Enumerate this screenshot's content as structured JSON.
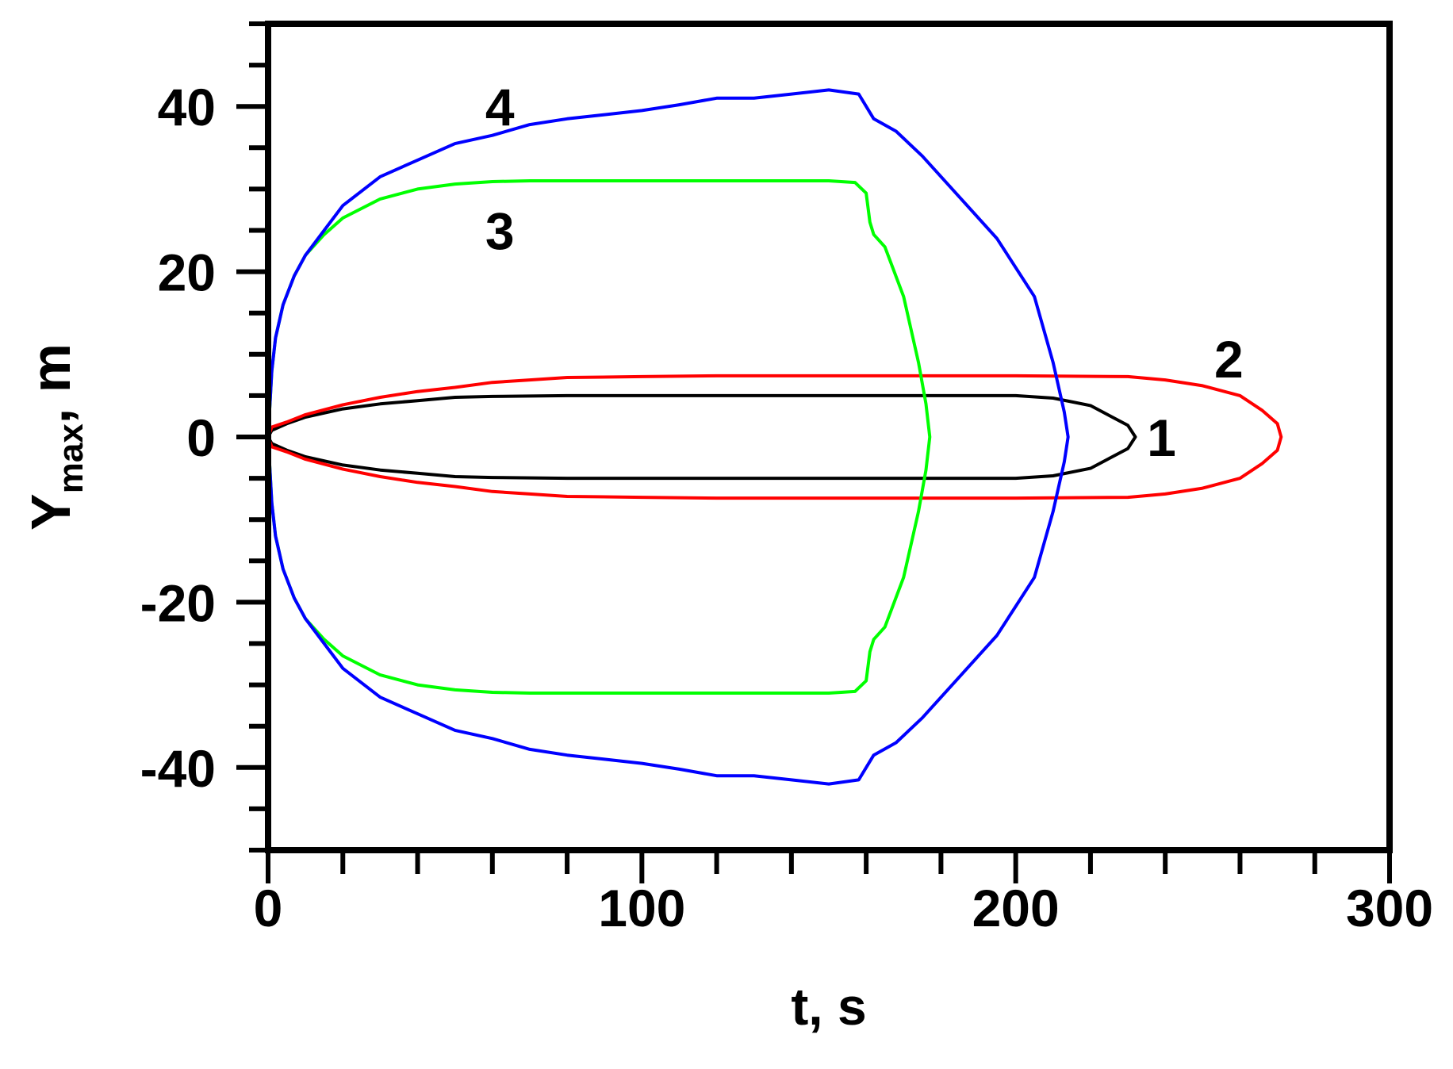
{
  "chart_data": {
    "type": "line",
    "title": "",
    "xlabel": "t, s",
    "ylabel": {
      "main": "Y",
      "sub": "max",
      "suffix": ", m"
    },
    "xlim": [
      0,
      300
    ],
    "ylim": [
      -50,
      50
    ],
    "x_ticks": [
      0,
      100,
      200,
      300
    ],
    "y_ticks": [
      -40,
      -20,
      0,
      20,
      40
    ],
    "x_tick_labels": [
      "0",
      "100",
      "200",
      "300"
    ],
    "y_tick_labels": [
      "-40",
      "-20",
      "0",
      "20",
      "40"
    ],
    "grid": false,
    "legend": "none",
    "series": [
      {
        "label": "1",
        "color": "#000000",
        "label_pos": [
          239,
          0
        ],
        "points": [
          [
            0,
            0
          ],
          [
            1,
            0.8
          ],
          [
            5,
            1.6
          ],
          [
            10,
            2.4
          ],
          [
            20,
            3.4
          ],
          [
            30,
            4.0
          ],
          [
            40,
            4.4
          ],
          [
            50,
            4.8
          ],
          [
            60,
            4.9
          ],
          [
            80,
            5.0
          ],
          [
            100,
            5.0
          ],
          [
            150,
            5.0
          ],
          [
            200,
            5.0
          ],
          [
            210,
            4.7
          ],
          [
            220,
            3.8
          ],
          [
            230,
            1.4
          ],
          [
            232,
            0
          ],
          [
            230,
            -1.4
          ],
          [
            220,
            -3.8
          ],
          [
            210,
            -4.7
          ],
          [
            200,
            -5.0
          ],
          [
            150,
            -5.0
          ],
          [
            100,
            -5.0
          ],
          [
            80,
            -5.0
          ],
          [
            60,
            -4.9
          ],
          [
            50,
            -4.8
          ],
          [
            40,
            -4.4
          ],
          [
            30,
            -4.0
          ],
          [
            20,
            -3.4
          ],
          [
            10,
            -2.4
          ],
          [
            5,
            -1.6
          ],
          [
            1,
            -0.8
          ],
          [
            0,
            0
          ]
        ]
      },
      {
        "label": "2",
        "color": "#ff0000",
        "label_pos": [
          257,
          9.5
        ],
        "points": [
          [
            0,
            0
          ],
          [
            1,
            1.2
          ],
          [
            5,
            1.8
          ],
          [
            10,
            2.7
          ],
          [
            20,
            3.9
          ],
          [
            30,
            4.8
          ],
          [
            40,
            5.5
          ],
          [
            50,
            6.0
          ],
          [
            60,
            6.6
          ],
          [
            70,
            6.9
          ],
          [
            80,
            7.2
          ],
          [
            100,
            7.3
          ],
          [
            120,
            7.4
          ],
          [
            150,
            7.4
          ],
          [
            200,
            7.4
          ],
          [
            230,
            7.3
          ],
          [
            240,
            6.9
          ],
          [
            250,
            6.2
          ],
          [
            260,
            5.0
          ],
          [
            266,
            3.2
          ],
          [
            270,
            1.6
          ],
          [
            271,
            0
          ],
          [
            270,
            -1.6
          ],
          [
            266,
            -3.2
          ],
          [
            260,
            -5.0
          ],
          [
            250,
            -6.2
          ],
          [
            240,
            -6.9
          ],
          [
            230,
            -7.3
          ],
          [
            200,
            -7.4
          ],
          [
            150,
            -7.4
          ],
          [
            120,
            -7.4
          ],
          [
            100,
            -7.3
          ],
          [
            80,
            -7.2
          ],
          [
            70,
            -6.9
          ],
          [
            60,
            -6.6
          ],
          [
            50,
            -6.0
          ],
          [
            40,
            -5.5
          ],
          [
            30,
            -4.8
          ],
          [
            20,
            -3.9
          ],
          [
            10,
            -2.7
          ],
          [
            5,
            -1.8
          ],
          [
            1,
            -1.2
          ],
          [
            0,
            0
          ]
        ]
      },
      {
        "label": "3",
        "color": "#00ff00",
        "label_pos": [
          62,
          25
        ],
        "points": [
          [
            0,
            0
          ],
          [
            1,
            8
          ],
          [
            2,
            12
          ],
          [
            4,
            16
          ],
          [
            7,
            19.5
          ],
          [
            10,
            22
          ],
          [
            15,
            24.5
          ],
          [
            20,
            26.5
          ],
          [
            30,
            28.8
          ],
          [
            40,
            30.0
          ],
          [
            50,
            30.6
          ],
          [
            60,
            30.9
          ],
          [
            70,
            31
          ],
          [
            100,
            31
          ],
          [
            130,
            31
          ],
          [
            150,
            31
          ],
          [
            157,
            30.8
          ],
          [
            160,
            29.5
          ],
          [
            161,
            26
          ],
          [
            162,
            24.5
          ],
          [
            165,
            23
          ],
          [
            170,
            17
          ],
          [
            174,
            9
          ],
          [
            176,
            4
          ],
          [
            177,
            0
          ],
          [
            176,
            -4
          ],
          [
            174,
            -9
          ],
          [
            170,
            -17
          ],
          [
            165,
            -23
          ],
          [
            162,
            -24.5
          ],
          [
            161,
            -26
          ],
          [
            160,
            -29.5
          ],
          [
            157,
            -30.8
          ],
          [
            150,
            -31
          ],
          [
            130,
            -31
          ],
          [
            100,
            -31
          ],
          [
            70,
            -31
          ],
          [
            60,
            -30.9
          ],
          [
            50,
            -30.6
          ],
          [
            40,
            -30.0
          ],
          [
            30,
            -28.8
          ],
          [
            20,
            -26.5
          ],
          [
            15,
            -24.5
          ],
          [
            10,
            -22
          ],
          [
            7,
            -19.5
          ],
          [
            4,
            -16
          ],
          [
            2,
            -12
          ],
          [
            1,
            -8
          ],
          [
            0,
            0
          ]
        ]
      },
      {
        "label": "4",
        "color": "#0000ff",
        "label_pos": [
          62,
          40
        ],
        "points": [
          [
            0,
            0
          ],
          [
            1,
            8
          ],
          [
            2,
            12
          ],
          [
            4,
            16
          ],
          [
            7,
            19.5
          ],
          [
            10,
            22
          ],
          [
            15,
            25
          ],
          [
            20,
            28
          ],
          [
            30,
            31.5
          ],
          [
            40,
            33.5
          ],
          [
            50,
            35.5
          ],
          [
            60,
            36.5
          ],
          [
            70,
            37.8
          ],
          [
            80,
            38.5
          ],
          [
            90,
            39
          ],
          [
            100,
            39.5
          ],
          [
            110,
            40.2
          ],
          [
            120,
            41
          ],
          [
            130,
            41
          ],
          [
            140,
            41.5
          ],
          [
            150,
            42
          ],
          [
            158,
            41.5
          ],
          [
            162,
            38.5
          ],
          [
            168,
            37
          ],
          [
            175,
            34
          ],
          [
            185,
            29
          ],
          [
            195,
            24
          ],
          [
            205,
            17
          ],
          [
            210,
            9
          ],
          [
            213,
            3
          ],
          [
            214,
            0
          ],
          [
            213,
            -3
          ],
          [
            210,
            -9
          ],
          [
            205,
            -17
          ],
          [
            195,
            -24
          ],
          [
            185,
            -29
          ],
          [
            175,
            -34
          ],
          [
            168,
            -37
          ],
          [
            162,
            -38.5
          ],
          [
            158,
            -41.5
          ],
          [
            150,
            -42
          ],
          [
            140,
            -41.5
          ],
          [
            130,
            -41
          ],
          [
            120,
            -41
          ],
          [
            110,
            -40.2
          ],
          [
            100,
            -39.5
          ],
          [
            90,
            -39
          ],
          [
            80,
            -38.5
          ],
          [
            70,
            -37.8
          ],
          [
            60,
            -36.5
          ],
          [
            50,
            -35.5
          ],
          [
            40,
            -33.5
          ],
          [
            30,
            -31.5
          ],
          [
            20,
            -28
          ],
          [
            15,
            -25
          ],
          [
            10,
            -22
          ],
          [
            7,
            -19.5
          ],
          [
            4,
            -16
          ],
          [
            2,
            -12
          ],
          [
            1,
            -8
          ],
          [
            0,
            0
          ]
        ]
      }
    ]
  }
}
